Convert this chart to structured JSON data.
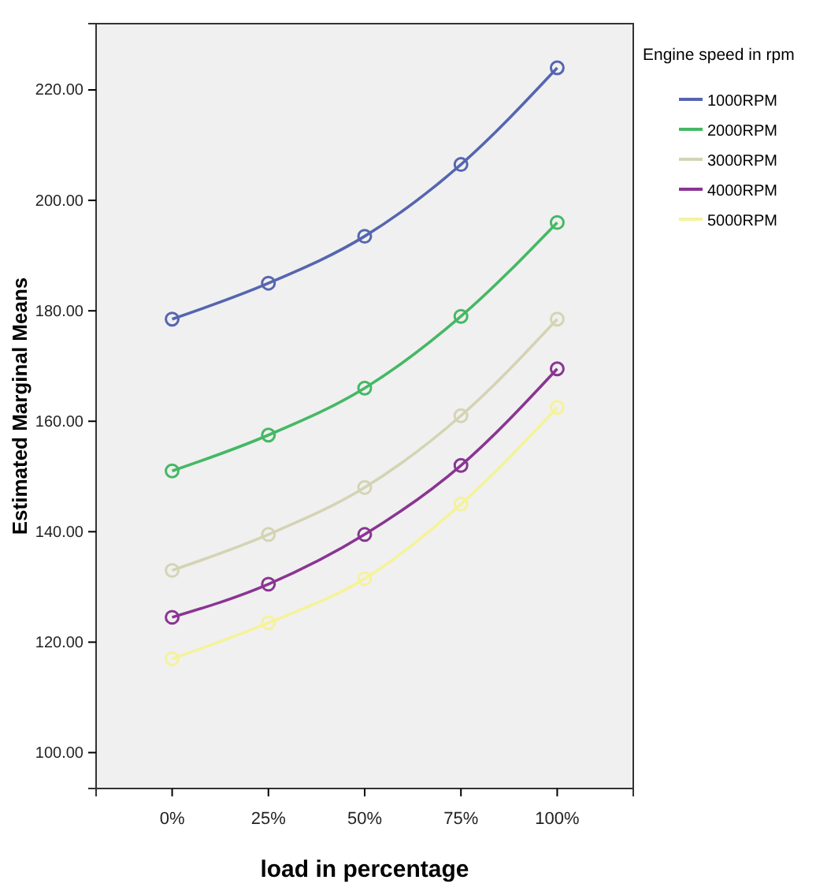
{
  "chart_data": {
    "type": "line",
    "xlabel": "load in percentage",
    "ylabel": "Estimated Marginal Means",
    "legend_title": "Engine speed in rpm",
    "legend": "right",
    "marker": "circle",
    "grid": false,
    "categories": [
      "0%",
      "25%",
      "50%",
      "75%",
      "100%"
    ],
    "ylim": [
      93.5,
      232
    ],
    "yticks": [
      {
        "value": 100,
        "label": "100.00"
      },
      {
        "value": 120,
        "label": "120.00"
      },
      {
        "value": 140,
        "label": "140.00"
      },
      {
        "value": 160,
        "label": "160.00"
      },
      {
        "value": 180,
        "label": "180.00"
      },
      {
        "value": 200,
        "label": "200.00"
      },
      {
        "value": 220,
        "label": "220.00"
      }
    ],
    "series": [
      {
        "name": "1000RPM",
        "color": "#5565b0",
        "values": [
          178.5,
          185,
          193.5,
          206.5,
          224
        ]
      },
      {
        "name": "2000RPM",
        "color": "#45b865",
        "values": [
          151,
          157.5,
          166,
          179,
          196
        ]
      },
      {
        "name": "3000RPM",
        "color": "#d4d4b4",
        "values": [
          133,
          139.5,
          148,
          161,
          178.5
        ]
      },
      {
        "name": "4000RPM",
        "color": "#8a3592",
        "values": [
          124.5,
          130.5,
          139.5,
          152,
          169.5
        ]
      },
      {
        "name": "5000RPM",
        "color": "#f5f29a",
        "values": [
          117,
          123.5,
          131.5,
          145,
          162.5
        ]
      }
    ]
  }
}
